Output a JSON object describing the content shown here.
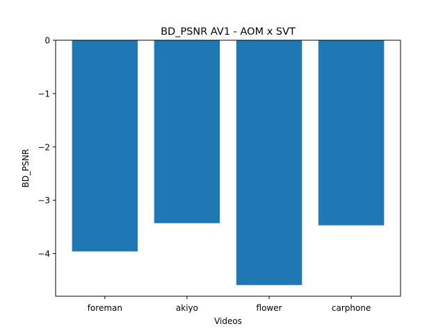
{
  "chart_data": {
    "type": "bar",
    "title": "BD_PSNR AV1 - AOM x SVT",
    "xlabel": "Videos",
    "ylabel": "BD_PSNR",
    "categories": [
      "foreman",
      "akiyo",
      "flower",
      "carphone"
    ],
    "values": [
      -3.96,
      -3.43,
      -4.59,
      -3.47
    ],
    "ylim": [
      -4.8,
      0
    ],
    "yticks": [
      0,
      -1,
      -2,
      -3,
      -4
    ],
    "ytick_labels": [
      "0",
      "−1",
      "−2",
      "−3",
      "−4"
    ],
    "grid": false,
    "bar_color": "#1f77b4"
  }
}
